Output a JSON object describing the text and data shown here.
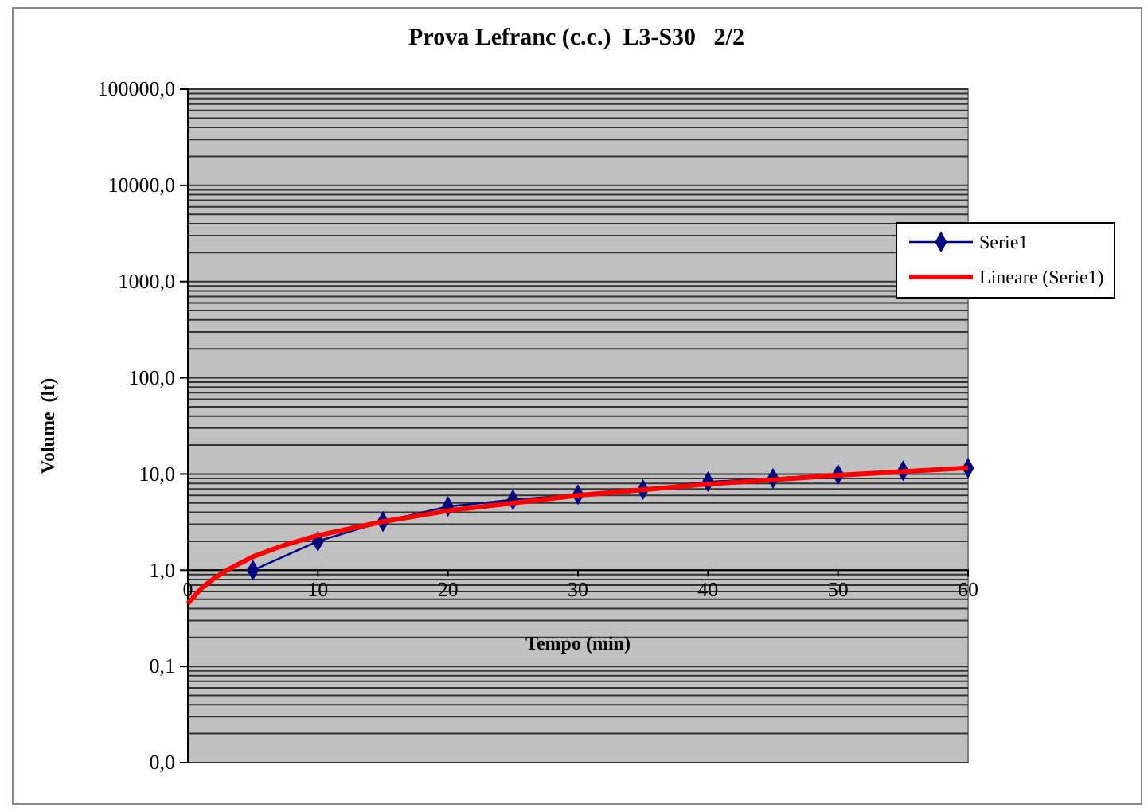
{
  "chart_data": {
    "type": "line",
    "title": "Prova Lefranc (c.c.)  L3-S30   2/2",
    "xlabel": "Tempo (min)",
    "ylabel": "Volume  (lt)",
    "series": [
      {
        "name": "Serie1",
        "color": "#000080",
        "marker": "diamond",
        "line_style": "solid",
        "x": [
          5,
          10,
          15,
          20,
          25,
          30,
          35,
          40,
          45,
          50,
          55,
          60
        ],
        "values": [
          1.0,
          2.0,
          3.2,
          4.6,
          5.4,
          6.1,
          6.9,
          8.3,
          9.0,
          9.9,
          10.8,
          11.5
        ]
      },
      {
        "name": "Lineare (Serie1)",
        "color": "#ff0000",
        "marker": "none",
        "line_style": "solid",
        "x": [
          0,
          1,
          2,
          3,
          5,
          7.5,
          10,
          15,
          20,
          30,
          40,
          50,
          60
        ],
        "values": [
          0.45,
          0.64,
          0.82,
          1.0,
          1.38,
          1.84,
          2.3,
          3.2,
          4.15,
          6.0,
          7.85,
          9.7,
          11.55
        ]
      }
    ],
    "xlim": [
      0,
      60
    ],
    "xticks": [
      0,
      10,
      20,
      30,
      40,
      50,
      60
    ],
    "ylim": [
      0.01,
      100000
    ],
    "yticks": [
      {
        "value": 0.01,
        "label": "0,0"
      },
      {
        "value": 0.1,
        "label": "0,1"
      },
      {
        "value": 1,
        "label": "1,0"
      },
      {
        "value": 10,
        "label": "10,0"
      },
      {
        "value": 100,
        "label": "100,0"
      },
      {
        "value": 1000,
        "label": "1000,0"
      },
      {
        "value": 10000,
        "label": "10000,0"
      },
      {
        "value": 100000,
        "label": "100000,0"
      }
    ],
    "log": "y",
    "grid": "y",
    "legend": "right"
  }
}
